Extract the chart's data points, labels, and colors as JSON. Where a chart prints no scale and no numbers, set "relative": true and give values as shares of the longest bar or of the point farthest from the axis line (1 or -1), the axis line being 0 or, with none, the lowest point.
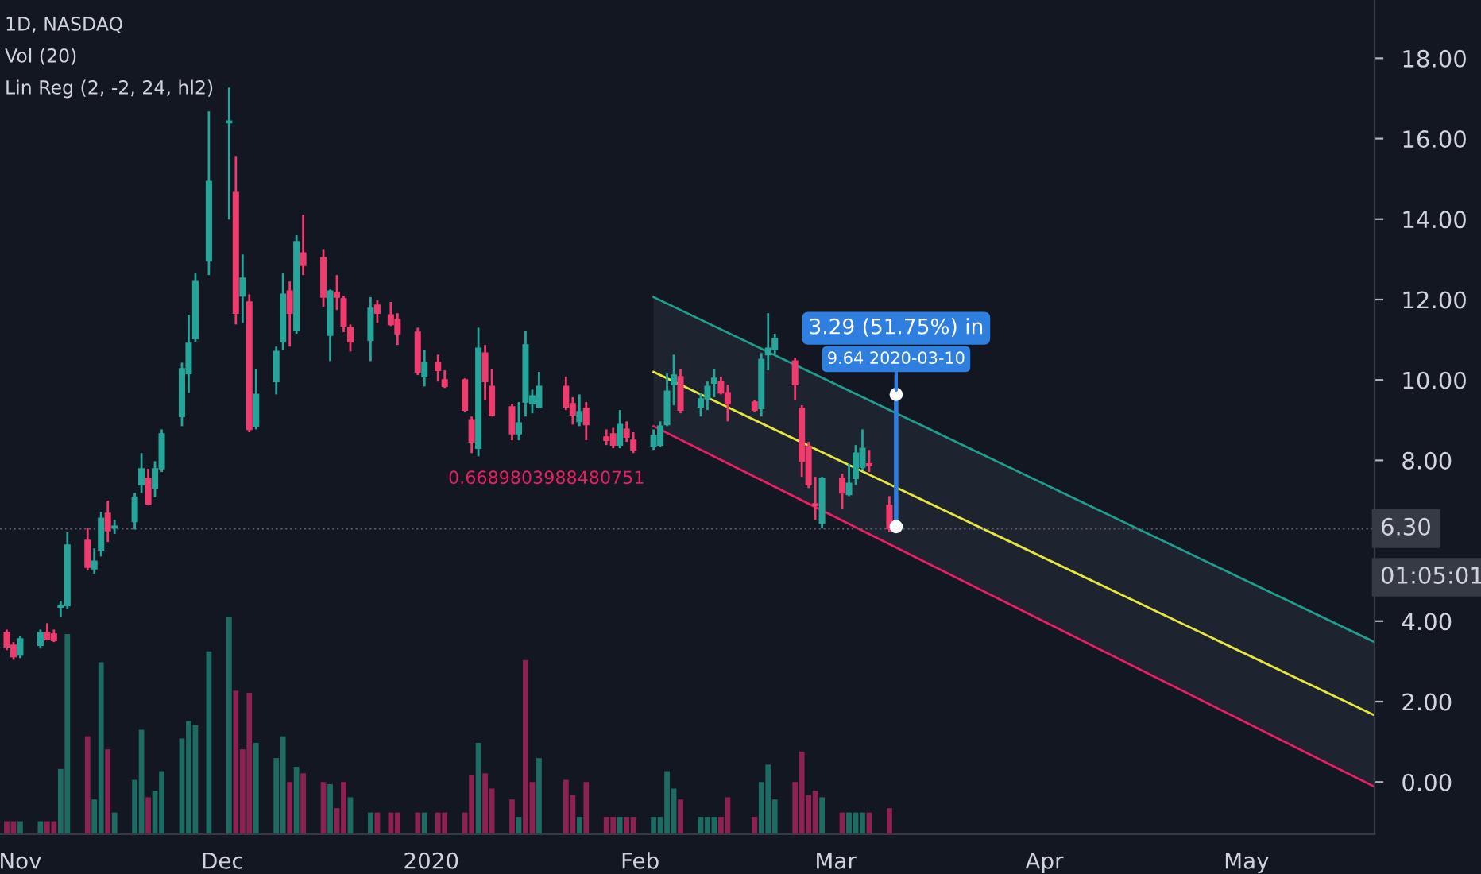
{
  "chart_data": [
    {
      "type": "candlestick",
      "title": "1D, NASDAQ",
      "annotations": [
        "Vol (20)",
        "Lin Reg (2, -2, 24, hl2)",
        {
          "text": "0.6689803988480751",
          "x": "2020-02-03",
          "y": 8.85
        },
        {
          "text": "3.29 (51.75%) in",
          "x": "2020-03-10",
          "y": 9.64
        },
        {
          "text": "9.64 2020-03-10",
          "x": "2020-03-10",
          "y": 9.64
        },
        "01:05:01"
      ],
      "x": [
        "2019-10-30",
        "2019-10-31",
        "2019-11-01",
        "2019-11-04",
        "2019-11-05",
        "2019-11-06",
        "2019-11-07",
        "2019-11-08",
        "2019-11-11",
        "2019-11-12",
        "2019-11-13",
        "2019-11-14",
        "2019-11-15",
        "2019-11-18",
        "2019-11-19",
        "2019-11-20",
        "2019-11-21",
        "2019-11-22",
        "2019-11-25",
        "2019-11-26",
        "2019-11-27",
        "2019-11-29",
        "2019-12-02",
        "2019-12-03",
        "2019-12-04",
        "2019-12-05",
        "2019-12-06",
        "2019-12-09",
        "2019-12-10",
        "2019-12-11",
        "2019-12-12",
        "2019-12-13",
        "2019-12-16",
        "2019-12-17",
        "2019-12-18",
        "2019-12-19",
        "2019-12-20",
        "2019-12-23",
        "2019-12-24",
        "2019-12-26",
        "2019-12-27",
        "2019-12-30",
        "2019-12-31",
        "2020-01-02",
        "2020-01-03",
        "2020-01-06",
        "2020-01-07",
        "2020-01-08",
        "2020-01-09",
        "2020-01-10",
        "2020-01-13",
        "2020-01-14",
        "2020-01-15",
        "2020-01-16",
        "2020-01-17",
        "2020-01-21",
        "2020-01-22",
        "2020-01-23",
        "2020-01-24",
        "2020-01-27",
        "2020-01-28",
        "2020-01-29",
        "2020-01-30",
        "2020-01-31",
        "2020-02-03",
        "2020-02-04",
        "2020-02-05",
        "2020-02-06",
        "2020-02-07",
        "2020-02-10",
        "2020-02-11",
        "2020-02-12",
        "2020-02-13",
        "2020-02-14",
        "2020-02-18",
        "2020-02-19",
        "2020-02-20",
        "2020-02-21",
        "2020-02-24",
        "2020-02-25",
        "2020-02-26",
        "2020-02-27",
        "2020-02-28",
        "2020-03-02",
        "2020-03-03",
        "2020-03-04",
        "2020-03-05",
        "2020-03-06",
        "2020-03-09"
      ],
      "ohlc": [
        [
          3.72,
          3.79,
          3.28,
          3.36
        ],
        [
          3.4,
          3.48,
          3.04,
          3.12
        ],
        [
          3.16,
          3.64,
          3.08,
          3.56
        ],
        [
          3.4,
          3.79,
          3.32,
          3.72
        ],
        [
          3.72,
          3.95,
          3.52,
          3.56
        ],
        [
          3.68,
          3.79,
          3.48,
          3.52
        ],
        [
          4.35,
          4.51,
          4.11,
          4.39
        ],
        [
          4.39,
          6.21,
          4.31,
          5.89
        ],
        [
          6.01,
          6.32,
          5.26,
          5.34
        ],
        [
          5.3,
          5.81,
          5.18,
          5.49
        ],
        [
          5.77,
          6.72,
          5.61,
          6.56
        ],
        [
          6.68,
          7.0,
          5.97,
          6.25
        ],
        [
          6.32,
          6.52,
          6.17,
          6.36
        ],
        [
          6.48,
          7.19,
          6.28,
          7.08
        ],
        [
          7.39,
          8.18,
          7.19,
          7.79
        ],
        [
          7.55,
          7.79,
          6.88,
          6.92
        ],
        [
          7.31,
          7.98,
          7.08,
          7.79
        ],
        [
          7.79,
          8.77,
          7.71,
          8.66
        ],
        [
          9.09,
          10.43,
          8.85,
          10.28
        ],
        [
          10.16,
          11.62,
          9.68,
          10.91
        ],
        [
          11.03,
          12.65,
          10.95,
          12.45
        ],
        [
          12.96,
          16.68,
          12.61,
          14.94
        ],
        [
          16.4,
          17.27,
          13.99,
          16.44
        ],
        [
          14.66,
          15.57,
          11.38,
          11.66
        ],
        [
          12.09,
          13.12,
          11.42,
          12.53
        ],
        [
          11.94,
          12.13,
          8.7,
          8.77
        ],
        [
          8.85,
          10.28,
          8.77,
          9.64
        ],
        [
          9.96,
          10.83,
          9.64,
          10.71
        ],
        [
          10.95,
          12.65,
          10.75,
          12.13
        ],
        [
          12.21,
          12.45,
          10.83,
          11.66
        ],
        [
          11.23,
          13.6,
          11.15,
          13.44
        ],
        [
          13.16,
          14.11,
          12.61,
          12.85
        ],
        [
          13.04,
          13.24,
          11.82,
          12.06
        ],
        [
          11.11,
          12.25,
          10.47,
          12.21
        ],
        [
          12.17,
          12.61,
          11.74,
          12.06
        ],
        [
          12.02,
          12.09,
          11.19,
          11.34
        ],
        [
          11.3,
          11.38,
          10.71,
          10.95
        ],
        [
          10.99,
          12.06,
          10.47,
          11.78
        ],
        [
          11.86,
          11.98,
          11.42,
          11.66
        ],
        [
          11.62,
          11.94,
          11.34,
          11.38
        ],
        [
          11.5,
          11.66,
          10.87,
          11.15
        ],
        [
          11.19,
          11.3,
          10.12,
          10.2
        ],
        [
          10.08,
          10.75,
          9.84,
          10.43
        ],
        [
          10.43,
          10.63,
          9.96,
          10.24
        ],
        [
          10.0,
          10.24,
          9.8,
          9.84
        ],
        [
          10.0,
          10.04,
          9.21,
          9.25
        ],
        [
          9.01,
          9.09,
          8.18,
          8.46
        ],
        [
          8.3,
          11.3,
          8.1,
          10.79
        ],
        [
          10.67,
          10.87,
          9.49,
          9.96
        ],
        [
          9.84,
          10.28,
          9.09,
          9.13
        ],
        [
          9.33,
          9.41,
          8.5,
          8.66
        ],
        [
          8.66,
          9.45,
          8.5,
          8.93
        ],
        [
          9.45,
          11.23,
          9.09,
          10.87
        ],
        [
          9.41,
          9.76,
          9.17,
          9.6
        ],
        [
          9.33,
          10.2,
          9.29,
          9.84
        ],
        [
          9.84,
          10.08,
          9.25,
          9.33
        ],
        [
          9.41,
          9.57,
          8.89,
          9.13
        ],
        [
          8.97,
          9.64,
          8.85,
          9.21
        ],
        [
          9.29,
          9.45,
          8.5,
          8.89
        ],
        [
          8.58,
          8.77,
          8.38,
          8.5
        ],
        [
          8.66,
          8.81,
          8.3,
          8.38
        ],
        [
          8.38,
          9.25,
          8.3,
          8.89
        ],
        [
          8.77,
          8.97,
          8.46,
          8.58
        ],
        [
          8.5,
          8.7,
          8.18,
          8.26
        ],
        [
          8.34,
          8.77,
          8.26,
          8.62
        ],
        [
          8.38,
          8.97,
          8.34,
          8.85
        ],
        [
          8.89,
          10.16,
          8.85,
          9.72
        ],
        [
          9.88,
          10.63,
          9.37,
          10.12
        ],
        [
          10.08,
          10.28,
          9.17,
          9.25
        ],
        [
          9.33,
          9.68,
          9.09,
          9.53
        ],
        [
          9.53,
          9.96,
          9.25,
          9.84
        ],
        [
          9.92,
          10.28,
          9.57,
          10.04
        ],
        [
          9.96,
          10.08,
          9.64,
          9.68
        ],
        [
          9.68,
          9.88,
          8.97,
          9.41
        ],
        [
          9.45,
          9.49,
          9.21,
          9.25
        ],
        [
          9.29,
          10.67,
          9.09,
          10.51
        ],
        [
          10.63,
          11.66,
          10.24,
          10.79
        ],
        [
          10.75,
          11.15,
          10.63,
          11.03
        ],
        [
          10.47,
          10.55,
          9.49,
          9.88
        ],
        [
          9.29,
          9.37,
          7.59,
          7.98
        ],
        [
          8.34,
          8.46,
          7.31,
          7.39
        ],
        [
          6.92,
          7.59,
          6.52,
          6.88
        ],
        [
          6.44,
          7.59,
          6.32,
          7.55
        ],
        [
          7.55,
          7.67,
          6.8,
          7.19
        ],
        [
          7.15,
          7.91,
          7.11,
          7.43
        ],
        [
          7.55,
          8.38,
          7.39,
          8.18
        ],
        [
          7.83,
          8.77,
          7.75,
          8.3
        ],
        [
          7.91,
          8.26,
          7.71,
          7.87
        ],
        [
          6.88,
          7.11,
          6.21,
          6.3
        ]
      ],
      "colors": [
        "#ef3b6e",
        "#ef3b6e",
        "#26a69a",
        "#26a69a",
        "#ef3b6e",
        "#ef3b6e",
        "#26a69a",
        "#26a69a",
        "#ef3b6e",
        "#26a69a",
        "#26a69a",
        "#ef3b6e",
        "#26a69a",
        "#26a69a",
        "#26a69a",
        "#ef3b6e",
        "#26a69a",
        "#26a69a",
        "#26a69a",
        "#26a69a",
        "#26a69a",
        "#26a69a",
        "#26a69a",
        "#ef3b6e",
        "#26a69a",
        "#ef3b6e",
        "#26a69a",
        "#26a69a",
        "#26a69a",
        "#ef3b6e",
        "#26a69a",
        "#ef3b6e",
        "#ef3b6e",
        "#26a69a",
        "#ef3b6e",
        "#ef3b6e",
        "#ef3b6e",
        "#26a69a",
        "#ef3b6e",
        "#ef3b6e",
        "#ef3b6e",
        "#ef3b6e",
        "#26a69a",
        "#ef3b6e",
        "#ef3b6e",
        "#ef3b6e",
        "#ef3b6e",
        "#26a69a",
        "#ef3b6e",
        "#ef3b6e",
        "#ef3b6e",
        "#26a69a",
        "#26a69a",
        "#26a69a",
        "#26a69a",
        "#ef3b6e",
        "#ef3b6e",
        "#26a69a",
        "#ef3b6e",
        "#ef3b6e",
        "#ef3b6e",
        "#26a69a",
        "#ef3b6e",
        "#ef3b6e",
        "#26a69a",
        "#26a69a",
        "#26a69a",
        "#26a69a",
        "#ef3b6e",
        "#26a69a",
        "#26a69a",
        "#26a69a",
        "#ef3b6e",
        "#ef3b6e",
        "#ef3b6e",
        "#26a69a",
        "#26a69a",
        "#26a69a",
        "#ef3b6e",
        "#ef3b6e",
        "#ef3b6e",
        "#ef3b6e",
        "#26a69a",
        "#ef3b6e",
        "#26a69a",
        "#26a69a",
        "#26a69a",
        "#ef3b6e",
        "#ef3b6e"
      ],
      "series": [
        {
          "type": "line",
          "x": [
            "2020-02-03",
            "2020-05-20"
          ],
          "values": [
            10.2,
            1.66
          ],
          "lower": [
            8.85,
            -0.12
          ],
          "upper": [
            12.06,
            3.48
          ],
          "color": "#e6e63c"
        },
        {
          "type": "line",
          "x": [
            "2020-02-03",
            "2020-05-20"
          ],
          "values": [
            12.06,
            3.48
          ],
          "color": "#1f9e8e"
        },
        {
          "type": "line",
          "x": [
            "2020-02-03",
            "2020-05-20"
          ],
          "values": [
            8.85,
            -0.12
          ],
          "color": "#e91e63"
        },
        {
          "type": "line",
          "x": [
            "2020-03-10",
            "2020-03-10"
          ],
          "values": [
            6.35,
            9.64
          ],
          "color": "#2f7de1",
          "marker": "circle"
        }
      ],
      "ref_lines": [
        {
          "axis": "y",
          "value": 6.3,
          "label": "6.30",
          "color": "#5d606b",
          "line_style": "dotted"
        }
      ],
      "xlim": [
        "2019-10-29",
        "2020-05-20"
      ],
      "xticks": [
        {
          "value": "2019-11-01",
          "label": "Nov"
        },
        {
          "value": "2019-12-01",
          "label": "Dec"
        },
        {
          "value": "2020-01-01",
          "label": "2020"
        },
        {
          "value": "2020-02-01",
          "label": "Feb"
        },
        {
          "value": "2020-03-01",
          "label": "Mar"
        },
        {
          "value": "2020-04-01",
          "label": "Apr"
        },
        {
          "value": "2020-05-01",
          "label": "May"
        }
      ],
      "ylim": [
        -1.3,
        19.45
      ],
      "yticks": [
        {
          "value": 0,
          "label": "0.00"
        },
        {
          "value": 2,
          "label": "2.00"
        },
        {
          "value": 4,
          "label": "4.00"
        },
        {
          "value": 6,
          "label": null
        },
        {
          "value": 8,
          "label": "8.00"
        },
        {
          "value": 10,
          "label": "10.00"
        },
        {
          "value": 12,
          "label": "12.00"
        },
        {
          "value": 14,
          "label": "14.00"
        },
        {
          "value": 16,
          "label": "16.00"
        },
        {
          "value": 18,
          "label": "18.00"
        }
      ]
    },
    {
      "type": "bar",
      "relative": true,
      "x": [
        "2019-10-30",
        "2019-10-31",
        "2019-11-01",
        "2019-11-04",
        "2019-11-05",
        "2019-11-06",
        "2019-11-07",
        "2019-11-08",
        "2019-11-11",
        "2019-11-12",
        "2019-11-13",
        "2019-11-14",
        "2019-11-15",
        "2019-11-18",
        "2019-11-19",
        "2019-11-20",
        "2019-11-21",
        "2019-11-22",
        "2019-11-25",
        "2019-11-26",
        "2019-11-27",
        "2019-11-29",
        "2019-12-02",
        "2019-12-03",
        "2019-12-04",
        "2019-12-05",
        "2019-12-06",
        "2019-12-09",
        "2019-12-10",
        "2019-12-11",
        "2019-12-12",
        "2019-12-13",
        "2019-12-16",
        "2019-12-17",
        "2019-12-18",
        "2019-12-19",
        "2019-12-20",
        "2019-12-23",
        "2019-12-24",
        "2019-12-26",
        "2019-12-27",
        "2019-12-30",
        "2019-12-31",
        "2020-01-02",
        "2020-01-03",
        "2020-01-06",
        "2020-01-07",
        "2020-01-08",
        "2020-01-09",
        "2020-01-10",
        "2020-01-13",
        "2020-01-14",
        "2020-01-15",
        "2020-01-16",
        "2020-01-17",
        "2020-01-21",
        "2020-01-22",
        "2020-01-23",
        "2020-01-24",
        "2020-01-27",
        "2020-01-28",
        "2020-01-29",
        "2020-01-30",
        "2020-01-31",
        "2020-02-03",
        "2020-02-04",
        "2020-02-05",
        "2020-02-06",
        "2020-02-07",
        "2020-02-10",
        "2020-02-11",
        "2020-02-12",
        "2020-02-13",
        "2020-02-14",
        "2020-02-18",
        "2020-02-19",
        "2020-02-20",
        "2020-02-21",
        "2020-02-24",
        "2020-02-25",
        "2020-02-26",
        "2020-02-27",
        "2020-02-28",
        "2020-03-02",
        "2020-03-03",
        "2020-03-04",
        "2020-03-05",
        "2020-03-06",
        "2020-03-09"
      ],
      "values": [
        0.06,
        0.06,
        0.06,
        0.06,
        0.06,
        0.06,
        0.3,
        0.92,
        0.45,
        0.16,
        0.79,
        0.39,
        0.1,
        0.25,
        0.48,
        0.17,
        0.2,
        0.29,
        0.44,
        0.52,
        0.5,
        0.84,
        1.0,
        0.66,
        0.39,
        0.65,
        0.42,
        0.35,
        0.45,
        0.24,
        0.31,
        0.28,
        0.24,
        0.23,
        0.12,
        0.24,
        0.17,
        0.1,
        0.1,
        0.1,
        0.1,
        0.1,
        0.1,
        0.1,
        0.1,
        0.1,
        0.27,
        0.42,
        0.28,
        0.21,
        0.16,
        0.08,
        0.8,
        0.24,
        0.35,
        0.25,
        0.18,
        0.08,
        0.24,
        0.08,
        0.08,
        0.08,
        0.08,
        0.08,
        0.08,
        0.08,
        0.29,
        0.21,
        0.16,
        0.08,
        0.08,
        0.08,
        0.08,
        0.17,
        0.08,
        0.24,
        0.32,
        0.16,
        0.24,
        0.38,
        0.18,
        0.2,
        0.17,
        0.1,
        0.1,
        0.1,
        0.1,
        0.1,
        0.12
      ],
      "colors": [
        "#8c2251",
        "#8c2251",
        "#1d6b62",
        "#1d6b62",
        "#8c2251",
        "#8c2251",
        "#1d6b62",
        "#1d6b62",
        "#8c2251",
        "#1d6b62",
        "#1d6b62",
        "#8c2251",
        "#1d6b62",
        "#1d6b62",
        "#1d6b62",
        "#8c2251",
        "#1d6b62",
        "#1d6b62",
        "#1d6b62",
        "#1d6b62",
        "#1d6b62",
        "#1d6b62",
        "#1d6b62",
        "#8c2251",
        "#8c2251",
        "#8c2251",
        "#1d6b62",
        "#1d6b62",
        "#1d6b62",
        "#8c2251",
        "#1d6b62",
        "#8c2251",
        "#8c2251",
        "#1d6b62",
        "#8c2251",
        "#8c2251",
        "#1d6b62",
        "#1d6b62",
        "#8c2251",
        "#8c2251",
        "#8c2251",
        "#8c2251",
        "#1d6b62",
        "#8c2251",
        "#8c2251",
        "#8c2251",
        "#8c2251",
        "#1d6b62",
        "#8c2251",
        "#8c2251",
        "#8c2251",
        "#1d6b62",
        "#8c2251",
        "#8c2251",
        "#1d6b62",
        "#8c2251",
        "#8c2251",
        "#1d6b62",
        "#8c2251",
        "#8c2251",
        "#8c2251",
        "#1d6b62",
        "#8c2251",
        "#8c2251",
        "#1d6b62",
        "#1d6b62",
        "#1d6b62",
        "#1d6b62",
        "#8c2251",
        "#1d6b62",
        "#1d6b62",
        "#1d6b62",
        "#8c2251",
        "#8c2251",
        "#8c2251",
        "#1d6b62",
        "#1d6b62",
        "#1d6b62",
        "#8c2251",
        "#8c2251",
        "#8c2251",
        "#8c2251",
        "#1d6b62",
        "#8c2251",
        "#1d6b62",
        "#1d6b62",
        "#1d6b62",
        "#8c2251",
        "#8c2251"
      ],
      "xlim": [
        "2019-10-29",
        "2020-05-20"
      ]
    }
  ]
}
